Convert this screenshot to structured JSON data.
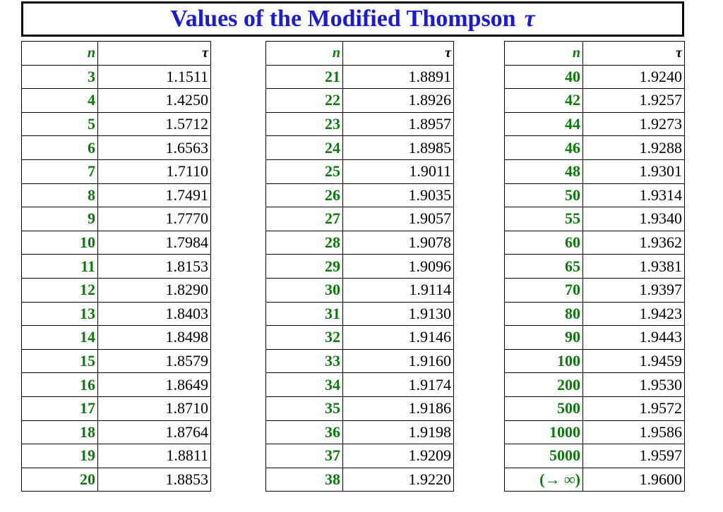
{
  "title": {
    "text": "Values of the Modified Thompson",
    "symbol": "τ"
  },
  "headers": {
    "n": "n",
    "tau": "τ"
  },
  "columns": [
    {
      "rows": [
        [
          "3",
          "1.1511"
        ],
        [
          "4",
          "1.4250"
        ],
        [
          "5",
          "1.5712"
        ],
        [
          "6",
          "1.6563"
        ],
        [
          "7",
          "1.7110"
        ],
        [
          "8",
          "1.7491"
        ],
        [
          "9",
          "1.7770"
        ],
        [
          "10",
          "1.7984"
        ],
        [
          "11",
          "1.8153"
        ],
        [
          "12",
          "1.8290"
        ],
        [
          "13",
          "1.8403"
        ],
        [
          "14",
          "1.8498"
        ],
        [
          "15",
          "1.8579"
        ],
        [
          "16",
          "1.8649"
        ],
        [
          "17",
          "1.8710"
        ],
        [
          "18",
          "1.8764"
        ],
        [
          "19",
          "1.8811"
        ],
        [
          "20",
          "1.8853"
        ]
      ]
    },
    {
      "rows": [
        [
          "21",
          "1.8891"
        ],
        [
          "22",
          "1.8926"
        ],
        [
          "23",
          "1.8957"
        ],
        [
          "24",
          "1.8985"
        ],
        [
          "25",
          "1.9011"
        ],
        [
          "26",
          "1.9035"
        ],
        [
          "27",
          "1.9057"
        ],
        [
          "28",
          "1.9078"
        ],
        [
          "29",
          "1.9096"
        ],
        [
          "30",
          "1.9114"
        ],
        [
          "31",
          "1.9130"
        ],
        [
          "32",
          "1.9146"
        ],
        [
          "33",
          "1.9160"
        ],
        [
          "34",
          "1.9174"
        ],
        [
          "35",
          "1.9186"
        ],
        [
          "36",
          "1.9198"
        ],
        [
          "37",
          "1.9209"
        ],
        [
          "38",
          "1.9220"
        ]
      ]
    },
    {
      "rows": [
        [
          "40",
          "1.9240"
        ],
        [
          "42",
          "1.9257"
        ],
        [
          "44",
          "1.9273"
        ],
        [
          "46",
          "1.9288"
        ],
        [
          "48",
          "1.9301"
        ],
        [
          "50",
          "1.9314"
        ],
        [
          "55",
          "1.9340"
        ],
        [
          "60",
          "1.9362"
        ],
        [
          "65",
          "1.9381"
        ],
        [
          "70",
          "1.9397"
        ],
        [
          "80",
          "1.9423"
        ],
        [
          "90",
          "1.9443"
        ],
        [
          "100",
          "1.9459"
        ],
        [
          "200",
          "1.9530"
        ],
        [
          "500",
          "1.9572"
        ],
        [
          "1000",
          "1.9586"
        ],
        [
          "5000",
          "1.9597"
        ],
        [
          "(→ ∞)",
          "1.9600"
        ]
      ]
    }
  ],
  "colors": {
    "title": "#1a1adb",
    "n": "#0a7a0a",
    "tau": "#000000"
  }
}
